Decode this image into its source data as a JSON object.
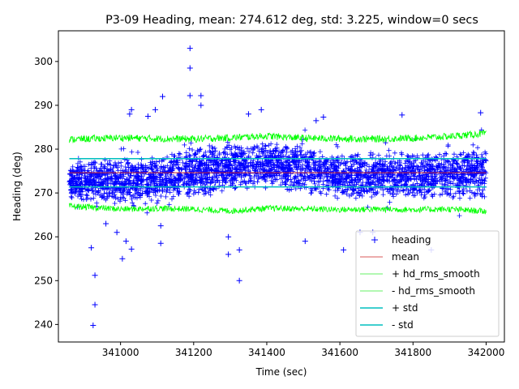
{
  "chart_data": {
    "type": "scatter",
    "title": "P3-09 Heading, mean: 274.612 deg, std: 3.225, window=0 secs",
    "xlabel": "Time (sec)",
    "ylabel": "Heading (deg)",
    "xlim": [
      340830,
      342050
    ],
    "ylim": [
      236,
      307
    ],
    "x_ticks": [
      {
        "value": 341000,
        "label": "341000"
      },
      {
        "value": 341200,
        "label": "341200"
      },
      {
        "value": 341400,
        "label": "341400"
      },
      {
        "value": 341600,
        "label": "341600"
      },
      {
        "value": 341800,
        "label": "341800"
      },
      {
        "value": 342000,
        "label": "342000"
      }
    ],
    "y_ticks": [
      {
        "value": 240,
        "label": "240"
      },
      {
        "value": 250,
        "label": "250"
      },
      {
        "value": 260,
        "label": "260"
      },
      {
        "value": 270,
        "label": "270"
      },
      {
        "value": 280,
        "label": "280"
      },
      {
        "value": 290,
        "label": "290"
      },
      {
        "value": 300,
        "label": "300"
      }
    ],
    "x_range": [
      340860,
      342000
    ],
    "mean": 274.612,
    "std": 3.225,
    "plus_std": 277.837,
    "minus_std": 271.387,
    "heading_band": [
      {
        "x": 340860,
        "lo": 268.5,
        "hi": 277.0
      },
      {
        "x": 341000,
        "lo": 267.5,
        "hi": 278.0
      },
      {
        "x": 341100,
        "lo": 268.0,
        "hi": 279.0
      },
      {
        "x": 341200,
        "lo": 268.5,
        "hi": 280.5
      },
      {
        "x": 341300,
        "lo": 270.5,
        "hi": 281.5
      },
      {
        "x": 341400,
        "lo": 271.0,
        "hi": 282.0
      },
      {
        "x": 341500,
        "lo": 270.0,
        "hi": 281.0
      },
      {
        "x": 341600,
        "lo": 268.5,
        "hi": 279.0
      },
      {
        "x": 341700,
        "lo": 268.0,
        "hi": 279.5
      },
      {
        "x": 341800,
        "lo": 268.5,
        "hi": 279.5
      },
      {
        "x": 341900,
        "lo": 268.5,
        "hi": 280.0
      },
      {
        "x": 342000,
        "lo": 268.5,
        "hi": 280.5
      }
    ],
    "rms_plus": [
      {
        "x": 340860,
        "y": 282.2
      },
      {
        "x": 341000,
        "y": 282.6
      },
      {
        "x": 341100,
        "y": 282.4
      },
      {
        "x": 341200,
        "y": 282.3
      },
      {
        "x": 341300,
        "y": 282.6
      },
      {
        "x": 341400,
        "y": 283.0
      },
      {
        "x": 341500,
        "y": 282.5
      },
      {
        "x": 341600,
        "y": 282.4
      },
      {
        "x": 341700,
        "y": 282.3
      },
      {
        "x": 341800,
        "y": 282.5
      },
      {
        "x": 341900,
        "y": 282.9
      },
      {
        "x": 342000,
        "y": 283.6
      }
    ],
    "rms_minus": [
      {
        "x": 340860,
        "y": 267.0
      },
      {
        "x": 341000,
        "y": 266.3
      },
      {
        "x": 341100,
        "y": 266.5
      },
      {
        "x": 341200,
        "y": 266.3
      },
      {
        "x": 341300,
        "y": 265.9
      },
      {
        "x": 341400,
        "y": 266.5
      },
      {
        "x": 341500,
        "y": 266.4
      },
      {
        "x": 341600,
        "y": 266.2
      },
      {
        "x": 341700,
        "y": 266.3
      },
      {
        "x": 341800,
        "y": 266.2
      },
      {
        "x": 341900,
        "y": 266.3
      },
      {
        "x": 342000,
        "y": 265.8
      }
    ],
    "outliers": [
      {
        "x": 340920,
        "y": 257.5
      },
      {
        "x": 340930,
        "y": 251.2
      },
      {
        "x": 340930,
        "y": 244.5
      },
      {
        "x": 340925,
        "y": 239.8
      },
      {
        "x": 340960,
        "y": 263.0
      },
      {
        "x": 340990,
        "y": 261.0
      },
      {
        "x": 341005,
        "y": 255.0
      },
      {
        "x": 341015,
        "y": 259.0
      },
      {
        "x": 341030,
        "y": 257.2
      },
      {
        "x": 341025,
        "y": 288.0
      },
      {
        "x": 341030,
        "y": 289.0
      },
      {
        "x": 341075,
        "y": 287.5
      },
      {
        "x": 341095,
        "y": 289.0
      },
      {
        "x": 341115,
        "y": 292.0
      },
      {
        "x": 341110,
        "y": 262.5
      },
      {
        "x": 341110,
        "y": 258.5
      },
      {
        "x": 341190,
        "y": 303.0
      },
      {
        "x": 341190,
        "y": 298.5
      },
      {
        "x": 341190,
        "y": 292.2
      },
      {
        "x": 341220,
        "y": 292.2
      },
      {
        "x": 341220,
        "y": 290.0
      },
      {
        "x": 341295,
        "y": 256.0
      },
      {
        "x": 341295,
        "y": 260.0
      },
      {
        "x": 341325,
        "y": 257.0
      },
      {
        "x": 341325,
        "y": 250.0
      },
      {
        "x": 341350,
        "y": 288.0
      },
      {
        "x": 341385,
        "y": 289.0
      },
      {
        "x": 341505,
        "y": 259.0
      },
      {
        "x": 341535,
        "y": 286.5
      },
      {
        "x": 341555,
        "y": 287.3
      },
      {
        "x": 341610,
        "y": 257.0
      },
      {
        "x": 341655,
        "y": 261.0
      },
      {
        "x": 341690,
        "y": 261.0
      },
      {
        "x": 341770,
        "y": 287.8
      },
      {
        "x": 341850,
        "y": 257.0
      },
      {
        "x": 341985,
        "y": 288.3
      }
    ],
    "legend": {
      "position": "lower-right",
      "entries": [
        {
          "label": "heading",
          "kind": "marker",
          "color": "#0000ff"
        },
        {
          "label": "mean",
          "kind": "line",
          "color": "#cc2222"
        },
        {
          "label": "+ hd_rms_smooth",
          "kind": "line",
          "color": "#33ee33"
        },
        {
          "label": "- hd_rms_smooth",
          "kind": "line",
          "color": "#33ee33"
        },
        {
          "label": "+ std",
          "kind": "line",
          "color": "#00bfbf"
        },
        {
          "label": "- std",
          "kind": "line",
          "color": "#00bfbf"
        }
      ]
    },
    "colors": {
      "heading": "#0000ff",
      "mean": "#cc2222",
      "rms": "#00ff00",
      "std": "#00bfbf"
    }
  }
}
